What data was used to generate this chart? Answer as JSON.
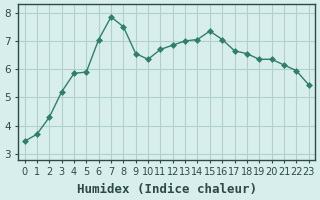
{
  "x": [
    0,
    1,
    2,
    3,
    4,
    5,
    6,
    7,
    8,
    9,
    10,
    11,
    12,
    13,
    14,
    15,
    16,
    17,
    18,
    19,
    20,
    21,
    22,
    23
  ],
  "y": [
    3.45,
    3.7,
    4.3,
    5.2,
    5.85,
    5.9,
    7.05,
    7.85,
    7.5,
    6.55,
    6.35,
    6.7,
    6.85,
    7.0,
    7.05,
    7.35,
    7.05,
    6.65,
    6.55,
    6.35,
    6.35,
    6.15,
    5.95,
    5.45
  ],
  "line_color": "#2e7f6e",
  "marker": "D",
  "marker_size": 3,
  "bg_color": "#d8eeec",
  "grid_color": "#b0d0cc",
  "xlabel": "Humidex (Indice chaleur)",
  "xlabel_fontsize": 9,
  "ylabel_ticks": [
    3,
    4,
    5,
    6,
    7,
    8
  ],
  "xlim": [
    -0.5,
    23.5
  ],
  "ylim": [
    2.8,
    8.3
  ],
  "tick_fontsize": 7.5,
  "axis_color": "#2e4a47"
}
